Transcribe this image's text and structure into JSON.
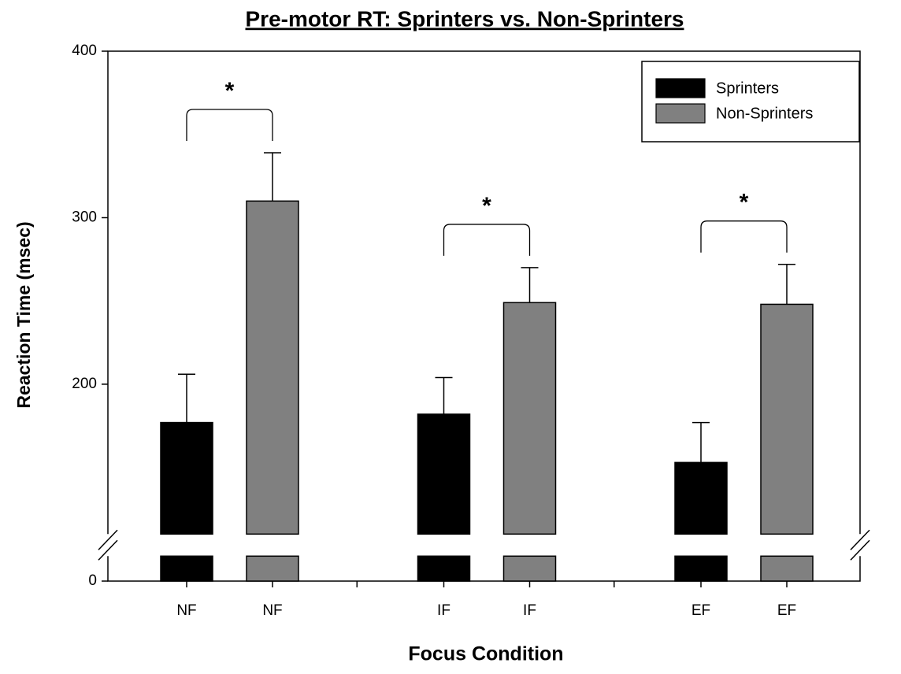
{
  "chart_data": {
    "type": "bar",
    "title": "Pre-motor RT: Sprinters vs. Non-Sprinters",
    "x_label": "Focus Condition",
    "y_label": "Reaction Time (msec)",
    "categories": [
      "NF",
      "IF",
      "EF"
    ],
    "series": [
      {
        "name": "Sprinters",
        "color": "#000000",
        "values": [
          177,
          182,
          153
        ],
        "errors": [
          29,
          22,
          24
        ]
      },
      {
        "name": "Non-Sprinters",
        "color": "#808080",
        "values": [
          310,
          249,
          248
        ],
        "errors": [
          29,
          21,
          24
        ]
      }
    ],
    "significance": [
      "*",
      "*",
      "*"
    ],
    "ylim": [
      0,
      400
    ],
    "yticks": [
      0,
      200,
      300,
      400
    ],
    "axis_break": [
      15,
      110
    ],
    "legend": "upper right",
    "grid": false
  }
}
